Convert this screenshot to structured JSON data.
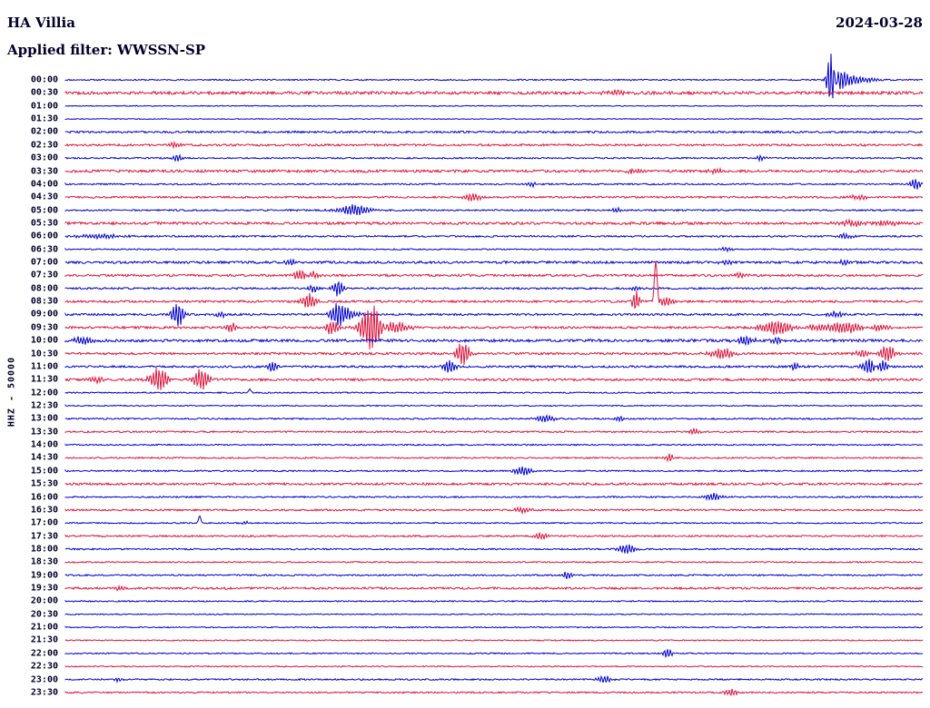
{
  "header": {
    "station": "HA Villia",
    "date": "2024-03-28",
    "filter": "Applied filter: WWSSN-SP",
    "channel_scale": "HHZ - 50000"
  },
  "colors": {
    "blue": "#0000cd",
    "red": "#dc143c",
    "text": "#000028",
    "background": "#ffffff"
  },
  "chart_data": {
    "type": "line",
    "subtype": "helicorder-seismogram",
    "title": "HA Villia",
    "date": "2024-03-28",
    "filter": "WWSSN-SP",
    "channel": "HHZ",
    "gain": "50000",
    "minutes_per_row": 30,
    "row_times_start": "00:00",
    "row_times_end": "23:30",
    "legend_position": "none",
    "grid": false,
    "rows": [
      {
        "time": "00:00",
        "color": "blue",
        "noise": 0.7,
        "events": [
          [
            915,
            36,
            3.5
          ],
          [
            923,
            10,
            8
          ],
          [
            940,
            4,
            16
          ]
        ]
      },
      {
        "time": "00:30",
        "color": "red",
        "noise": 1.6,
        "events": [
          [
            680,
            3,
            10
          ]
        ]
      },
      {
        "time": "01:00",
        "color": "blue",
        "noise": 0.5,
        "events": []
      },
      {
        "time": "01:30",
        "color": "blue",
        "noise": 0.45,
        "events": []
      },
      {
        "time": "02:00",
        "color": "blue",
        "noise": 1.1,
        "events": []
      },
      {
        "time": "02:30",
        "color": "red",
        "noise": 1.1,
        "events": [
          [
            190,
            2.5,
            6
          ]
        ]
      },
      {
        "time": "03:00",
        "color": "blue",
        "noise": 0.8,
        "events": [
          [
            195,
            4.5,
            4
          ],
          [
            838,
            3,
            4
          ]
        ]
      },
      {
        "time": "03:30",
        "color": "red",
        "noise": 1.4,
        "events": [
          [
            700,
            2.5,
            8
          ],
          [
            790,
            2.5,
            6
          ]
        ]
      },
      {
        "time": "04:00",
        "color": "blue",
        "noise": 0.8,
        "events": [
          [
            585,
            2.5,
            4
          ],
          [
            1008,
            7,
            4
          ]
        ]
      },
      {
        "time": "04:30",
        "color": "red",
        "noise": 1.0,
        "events": [
          [
            520,
            4.5,
            7
          ],
          [
            945,
            3,
            8
          ]
        ]
      },
      {
        "time": "05:00",
        "color": "blue",
        "noise": 0.9,
        "events": [
          [
            390,
            6,
            12
          ],
          [
            680,
            2.5,
            5
          ]
        ]
      },
      {
        "time": "05:30",
        "color": "red",
        "noise": 1.4,
        "events": [
          [
            940,
            3,
            14
          ],
          [
            975,
            3,
            8
          ]
        ]
      },
      {
        "time": "06:00",
        "color": "blue",
        "noise": 0.9,
        "events": [
          [
            110,
            2.5,
            18
          ],
          [
            930,
            3,
            6
          ]
        ]
      },
      {
        "time": "06:30",
        "color": "blue",
        "noise": 0.7,
        "events": [
          [
            800,
            2.5,
            5
          ]
        ]
      },
      {
        "time": "07:00",
        "color": "blue",
        "noise": 1.3,
        "events": [
          [
            320,
            3,
            5
          ],
          [
            800,
            2.5,
            6
          ],
          [
            930,
            2.5,
            5
          ]
        ]
      },
      {
        "time": "07:30",
        "color": "red",
        "noise": 1.2,
        "events": [
          [
            330,
            6,
            5
          ],
          [
            345,
            4,
            4
          ],
          [
            815,
            2.5,
            5
          ]
        ]
      },
      {
        "time": "08:00",
        "color": "blue",
        "noise": 1.0,
        "events": [
          [
            345,
            4,
            4
          ],
          [
            372,
            9,
            4
          ],
          [
            700,
            2.5,
            4
          ]
        ]
      },
      {
        "time": "08:30",
        "color": "red",
        "noise": 1.2,
        "events": [
          [
            340,
            9,
            5
          ],
          [
            700,
            12,
            3
          ],
          [
            722,
            45,
            1.4
          ],
          [
            733,
            5,
            6
          ]
        ]
      },
      {
        "time": "09:00",
        "color": "blue",
        "noise": 1.1,
        "events": [
          [
            196,
            13,
            5
          ],
          [
            243,
            3,
            5
          ],
          [
            372,
            12,
            6
          ],
          [
            385,
            5,
            8
          ],
          [
            920,
            3.5,
            6
          ]
        ]
      },
      {
        "time": "09:30",
        "color": "red",
        "noise": 1.2,
        "events": [
          [
            255,
            5,
            4
          ],
          [
            365,
            8,
            5
          ],
          [
            410,
            28,
            9
          ],
          [
            428,
            8,
            14
          ],
          [
            855,
            8,
            12
          ],
          [
            900,
            3,
            8
          ],
          [
            930,
            6,
            14
          ],
          [
            968,
            4,
            8
          ]
        ]
      },
      {
        "time": "10:00",
        "color": "blue",
        "noise": 1.5,
        "events": [
          [
            90,
            4,
            8
          ],
          [
            820,
            4,
            8
          ],
          [
            855,
            3,
            6
          ]
        ]
      },
      {
        "time": "10:30",
        "color": "red",
        "noise": 1.2,
        "events": [
          [
            510,
            14,
            5
          ],
          [
            795,
            6,
            9
          ],
          [
            950,
            4,
            6
          ],
          [
            977,
            9,
            6
          ]
        ]
      },
      {
        "time": "11:00",
        "color": "blue",
        "noise": 1.1,
        "events": [
          [
            300,
            6,
            4
          ],
          [
            495,
            7,
            5
          ],
          [
            875,
            4,
            4
          ],
          [
            957,
            9,
            5
          ],
          [
            972,
            6,
            5
          ]
        ]
      },
      {
        "time": "11:30",
        "color": "red",
        "noise": 1.3,
        "events": [
          [
            105,
            3,
            6
          ],
          [
            175,
            13,
            7
          ],
          [
            222,
            12,
            6
          ]
        ]
      },
      {
        "time": "12:00",
        "color": "blue",
        "noise": 0.7,
        "events": [
          [
            275,
            3.5,
            1.4
          ]
        ]
      },
      {
        "time": "12:30",
        "color": "blue",
        "noise": 0.6,
        "events": []
      },
      {
        "time": "13:00",
        "color": "blue",
        "noise": 0.8,
        "events": [
          [
            600,
            4,
            7
          ],
          [
            682,
            2.5,
            4
          ]
        ]
      },
      {
        "time": "13:30",
        "color": "red",
        "noise": 0.9,
        "events": [
          [
            765,
            4,
            4
          ]
        ]
      },
      {
        "time": "14:00",
        "color": "blue",
        "noise": 0.7,
        "events": []
      },
      {
        "time": "14:30",
        "color": "red",
        "noise": 0.8,
        "events": [
          [
            737,
            4.5,
            3
          ]
        ]
      },
      {
        "time": "15:00",
        "color": "blue",
        "noise": 0.8,
        "events": [
          [
            575,
            5,
            7
          ]
        ]
      },
      {
        "time": "15:30",
        "color": "red",
        "noise": 1.2,
        "events": []
      },
      {
        "time": "16:00",
        "color": "blue",
        "noise": 0.8,
        "events": [
          [
            785,
            4,
            7
          ]
        ]
      },
      {
        "time": "16:30",
        "color": "red",
        "noise": 0.9,
        "events": [
          [
            575,
            3.5,
            6
          ]
        ]
      },
      {
        "time": "17:00",
        "color": "blue",
        "noise": 0.7,
        "events": [
          [
            220,
            8,
            1.2
          ],
          [
            270,
            2,
            3
          ]
        ]
      },
      {
        "time": "17:30",
        "color": "red",
        "noise": 0.9,
        "events": [
          [
            595,
            4,
            6
          ]
        ]
      },
      {
        "time": "18:00",
        "color": "blue",
        "noise": 0.8,
        "events": [
          [
            690,
            5,
            7
          ]
        ]
      },
      {
        "time": "18:30",
        "color": "red",
        "noise": 0.7,
        "events": []
      },
      {
        "time": "19:00",
        "color": "blue",
        "noise": 0.8,
        "events": [
          [
            625,
            4.5,
            3.5
          ]
        ]
      },
      {
        "time": "19:30",
        "color": "red",
        "noise": 1.1,
        "events": [
          [
            130,
            2.5,
            5
          ]
        ]
      },
      {
        "time": "20:00",
        "color": "blue",
        "noise": 0.7,
        "events": []
      },
      {
        "time": "20:30",
        "color": "blue",
        "noise": 0.6,
        "events": []
      },
      {
        "time": "21:00",
        "color": "blue",
        "noise": 0.6,
        "events": []
      },
      {
        "time": "21:30",
        "color": "red",
        "noise": 0.6,
        "events": []
      },
      {
        "time": "22:00",
        "color": "blue",
        "noise": 0.7,
        "events": [
          [
            735,
            5,
            4
          ]
        ]
      },
      {
        "time": "22:30",
        "color": "red",
        "noise": 0.6,
        "events": []
      },
      {
        "time": "23:00",
        "color": "blue",
        "noise": 0.8,
        "events": [
          [
            665,
            4,
            6
          ],
          [
            130,
            2,
            4
          ]
        ]
      },
      {
        "time": "23:30",
        "color": "red",
        "noise": 0.8,
        "events": [
          [
            805,
            4,
            5
          ]
        ]
      }
    ]
  }
}
